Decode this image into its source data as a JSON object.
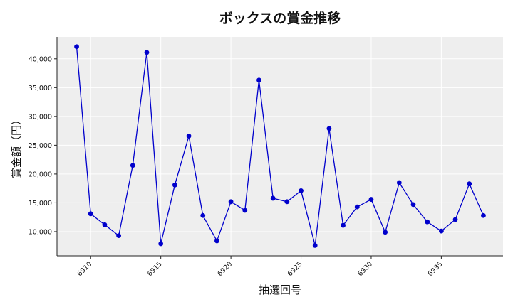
{
  "chart_data": {
    "type": "line",
    "title": "ボックスの賞金推移",
    "xlabel": "抽選回号",
    "ylabel": "賞金額（円）",
    "xlim": [
      6907.6,
      6939.4
    ],
    "ylim": [
      5800,
      43800
    ],
    "xticks": [
      6910,
      6915,
      6920,
      6925,
      6930,
      6935
    ],
    "yticks": [
      10000,
      15000,
      20000,
      25000,
      30000,
      35000,
      40000
    ],
    "ytick_labels": [
      "10,000",
      "15,000",
      "20,000",
      "25,000",
      "30,000",
      "35,000",
      "40,000"
    ],
    "grid": true,
    "series": [
      {
        "color": "#0000cc",
        "x": [
          6909,
          6910,
          6911,
          6912,
          6913,
          6914,
          6915,
          6916,
          6917,
          6918,
          6919,
          6920,
          6921,
          6922,
          6923,
          6924,
          6925,
          6926,
          6927,
          6928,
          6929,
          6930,
          6931,
          6932,
          6933,
          6934,
          6935,
          6936,
          6937,
          6938
        ],
        "values": [
          42100,
          13100,
          11200,
          9300,
          21500,
          41100,
          7900,
          18100,
          26600,
          12800,
          8400,
          15200,
          13700,
          36300,
          15800,
          15200,
          17100,
          7600,
          27900,
          11100,
          14300,
          15600,
          9900,
          18500,
          14700,
          11700,
          10100,
          12100,
          18300,
          12800
        ]
      }
    ]
  }
}
